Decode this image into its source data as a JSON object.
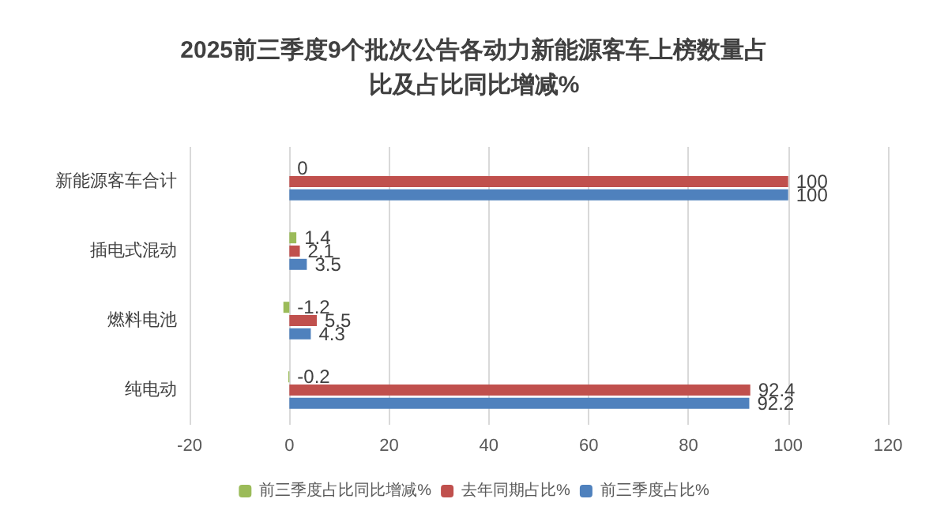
{
  "chart_data": {
    "type": "bar",
    "orientation": "horizontal",
    "title": "2025前三季度9个批次公告各动力新能源客车上榜数量占比及占比同比增减%",
    "categories": [
      "新能源客车合计",
      "插电式混动",
      "燃料电池",
      "纯电动"
    ],
    "series": [
      {
        "name": "前三季度占比同比增减%",
        "color": "#9bbb59",
        "values": [
          0,
          1.4,
          -1.2,
          -0.2
        ]
      },
      {
        "name": "去年同期占比%",
        "color": "#c0504d",
        "values": [
          100,
          2.1,
          5.5,
          92.4
        ]
      },
      {
        "name": "前三季度占比%",
        "color": "#4f81bd",
        "values": [
          100,
          3.5,
          4.3,
          92.2
        ]
      }
    ],
    "xlim": [
      -20,
      120
    ],
    "xticks": [
      -20,
      0,
      20,
      40,
      60,
      80,
      100,
      120
    ],
    "grid": "x",
    "legend": "bottom",
    "data_labels": true
  }
}
